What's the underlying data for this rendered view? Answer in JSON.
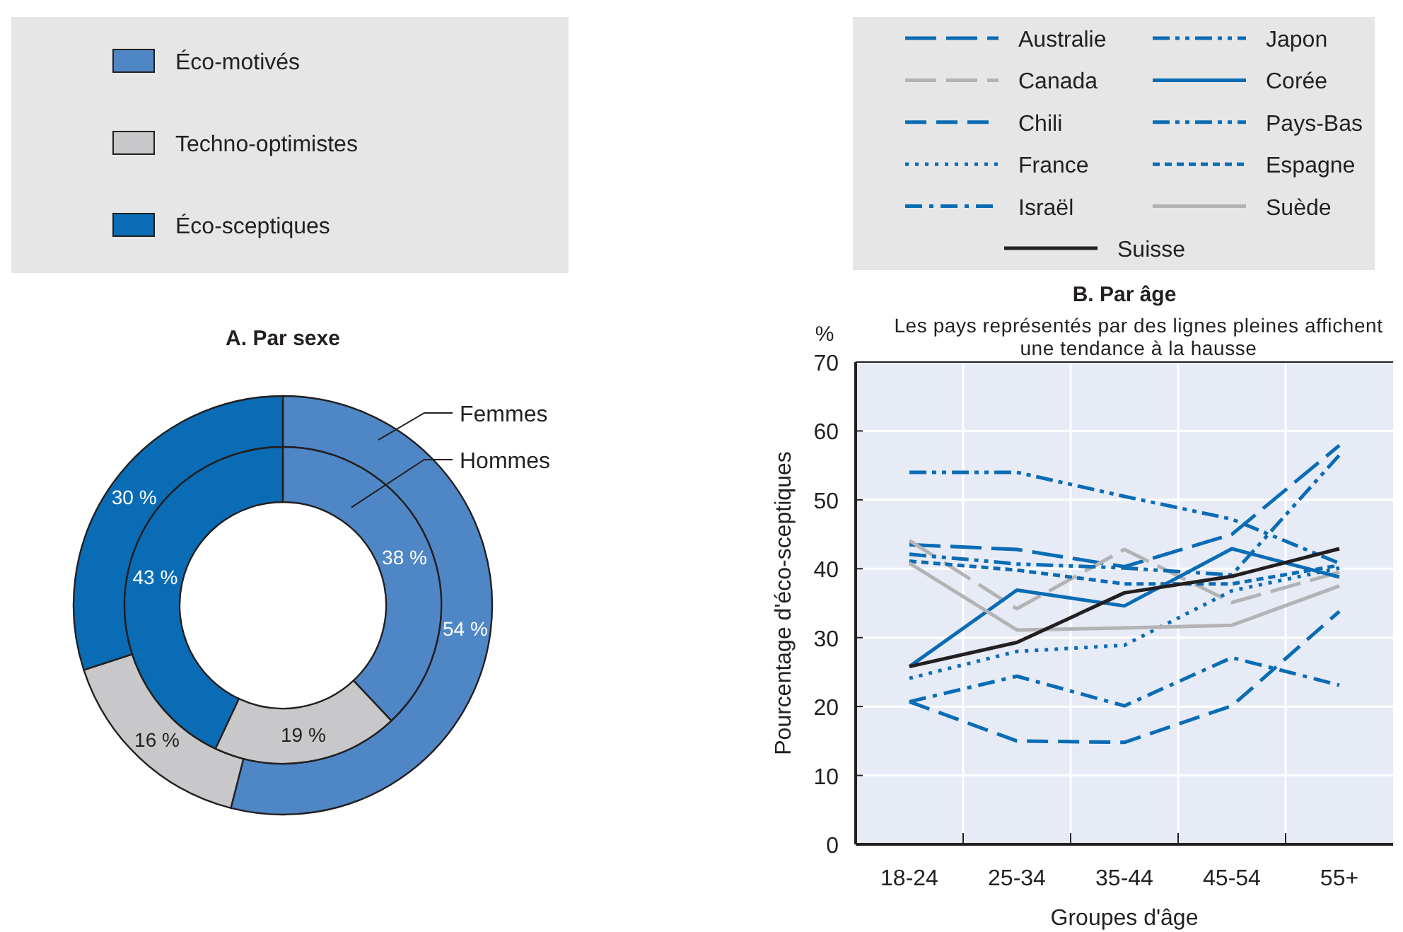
{
  "chart_data": [
    {
      "type": "donut",
      "title": "A. Par sexe",
      "categories": [
        "Éco-motivés",
        "Techno-optimistes",
        "Éco-sceptiques"
      ],
      "colors": [
        "#4f86c6",
        "#c8c8ca",
        "#0a6cb5"
      ],
      "legend": "top",
      "series": [
        {
          "name": "Femmes",
          "values": [
            54,
            16,
            30
          ],
          "value_labels": [
            "54 %",
            "16 %",
            "30 %"
          ]
        },
        {
          "name": "Hommes",
          "values": [
            38,
            19,
            43
          ],
          "value_labels": [
            "38 %",
            "19 %",
            "43 %"
          ]
        }
      ]
    },
    {
      "type": "line",
      "title": "B. Par âge",
      "subtitle": "Les pays représentés par des lignes pleines affichent une tendance à la hausse",
      "xlabel": "Groupes d'âge",
      "ylabel": "Pourcentage d'éco-sceptiques",
      "annotations": [
        "%"
      ],
      "categories": [
        "18-24",
        "25-34",
        "35-44",
        "45-54",
        "55+"
      ],
      "ylim": [
        0,
        70
      ],
      "yticks": [
        0,
        10,
        20,
        30,
        40,
        50,
        60,
        70
      ],
      "grid": true,
      "legend": "top",
      "series": [
        {
          "name": "Australie",
          "color": "#0a6cb5",
          "line_style": "longdash",
          "values": [
            43.5,
            42.8,
            40.3,
            45,
            57.9
          ]
        },
        {
          "name": "Canada",
          "color": "#b3b3b5",
          "line_style": "longdash",
          "values": [
            44.1,
            34.2,
            42.8,
            35.1,
            39.5
          ]
        },
        {
          "name": "Chili",
          "color": "#0a6cb5",
          "line_style": "dashed",
          "values": [
            20.7,
            15,
            14.8,
            20.1,
            33.8
          ]
        },
        {
          "name": "France",
          "color": "#0a6cb5",
          "line_style": "dotted",
          "values": [
            24.1,
            28,
            28.9,
            36.8,
            40.1
          ]
        },
        {
          "name": "Israël",
          "color": "#0a6cb5",
          "line_style": "dashdot",
          "values": [
            20.7,
            24.4,
            20.1,
            27.1,
            23.1
          ]
        },
        {
          "name": "Japon",
          "color": "#0a6cb5",
          "line_style": "dashdotdot",
          "values": [
            54,
            54,
            50.5,
            47.2,
            40.8
          ]
        },
        {
          "name": "Corée",
          "color": "#0a6cb5",
          "line_style": "solid",
          "values": [
            25.8,
            36.9,
            34.6,
            42.9,
            38.8
          ]
        },
        {
          "name": "Pays-Bas",
          "color": "#0a6cb5",
          "line_style": "dashdotdot",
          "values": [
            42.1,
            40.7,
            40.1,
            39.1,
            56.5
          ]
        },
        {
          "name": "Espagne",
          "color": "#0a6cb5",
          "line_style": "shortdash",
          "values": [
            41.1,
            39.8,
            37.8,
            37.8,
            40.5
          ]
        },
        {
          "name": "Suède",
          "color": "#b3b3b5",
          "line_style": "solid",
          "values": [
            40.8,
            31.1,
            31.4,
            31.8,
            37.5
          ]
        },
        {
          "name": "Suisse",
          "color": "#231f20",
          "line_style": "solid",
          "values": [
            25.8,
            29.3,
            36.5,
            38.9,
            42.9
          ]
        }
      ]
    }
  ]
}
